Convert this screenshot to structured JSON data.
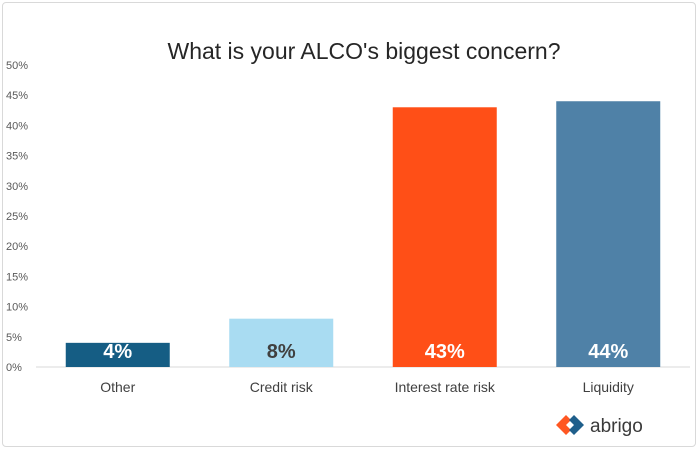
{
  "chart_data": {
    "type": "bar",
    "title": "What is your ALCO's biggest concern?",
    "categories": [
      "Other",
      "Credit risk",
      "Interest rate risk",
      "Liquidity"
    ],
    "values": [
      4,
      8,
      43,
      44
    ],
    "data_labels": [
      "4%",
      "8%",
      "43%",
      "44%"
    ],
    "bar_colors": [
      "#155d84",
      "#a9dcf2",
      "#ff4f17",
      "#4f81a7"
    ],
    "label_colors": [
      "#ffffff",
      "#404040",
      "#ffffff",
      "#ffffff"
    ],
    "ylim": [
      0,
      50
    ],
    "yticks": [
      0,
      5,
      10,
      15,
      20,
      25,
      30,
      35,
      40,
      45,
      50
    ],
    "ytick_labels": [
      "0%",
      "5%",
      "10%",
      "15%",
      "20%",
      "25%",
      "30%",
      "35%",
      "40%",
      "45%",
      "50%"
    ],
    "xlabel": "",
    "ylabel": "",
    "grid": false
  },
  "brand": {
    "name": "abrigo",
    "logo_colors": [
      "#ff5722",
      "#1f5f8b"
    ]
  }
}
